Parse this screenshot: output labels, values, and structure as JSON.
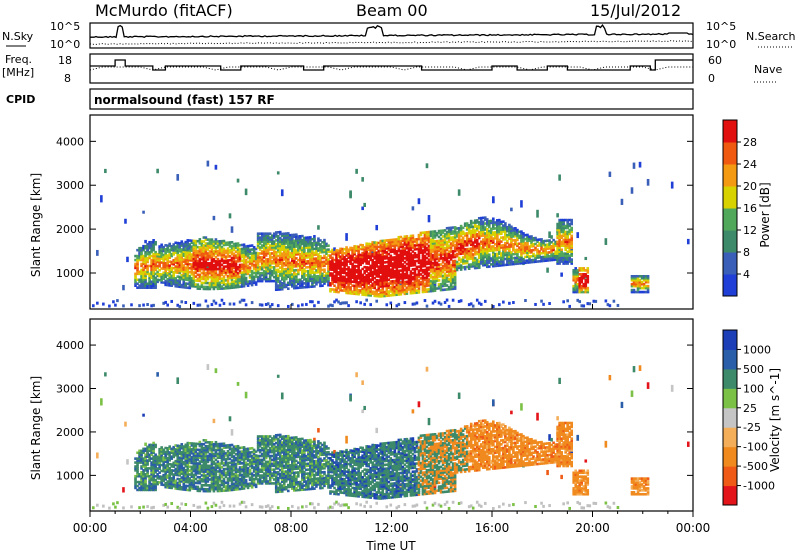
{
  "header": {
    "station": "McMurdo (fitACF)",
    "beam": "Beam 00",
    "date": "15/Jul/2012"
  },
  "status_panel": {
    "left_label_1": "N.Sky",
    "left_tick_top": "10^5",
    "left_tick_bottom": "10^0",
    "right_label_1": "N.Search",
    "right_tick_top": "10^5",
    "right_tick_bottom": "10^0"
  },
  "freq_panel": {
    "left_label_a": "Freq.",
    "left_label_b": "[MHz]",
    "left_tick_top": "18",
    "left_tick_bottom": "8",
    "right_label": "Nave",
    "right_tick_top": "60",
    "right_tick_bottom": "0"
  },
  "cpid_panel": {
    "label": "CPID",
    "value": "normalsound (fast) 157 RF"
  },
  "colors": {
    "power": [
      "#1f3fd6",
      "#3a5fb8",
      "#3d8a6a",
      "#52a85a",
      "#d8d200",
      "#f39a12",
      "#ef5a10",
      "#e20f0f"
    ],
    "velocity": [
      "#e4141b",
      "#ef5b16",
      "#f08a1f",
      "#f4ae5a",
      "#c5c5c5",
      "#7bc145",
      "#3d8a6a",
      "#2b5ea8",
      "#1c3fb8"
    ],
    "ground": "#c0c0c0"
  },
  "chart_data": [
    {
      "type": "heatmap",
      "panel": "power",
      "ylabel": "Slant Range [km]",
      "ylim": [
        180,
        4600
      ],
      "yticks": [
        "1000",
        "2000",
        "3000",
        "4000"
      ],
      "colorbar_label": "Power [dB]",
      "colorbar_ticks": [
        "4",
        "8",
        "12",
        "16",
        "20",
        "24",
        "28"
      ],
      "xlim": [
        0,
        24
      ],
      "grid": false
    },
    {
      "type": "heatmap",
      "panel": "velocity",
      "ylabel": "Slant Range [km]",
      "ylim": [
        180,
        4600
      ],
      "yticks": [
        "1000",
        "2000",
        "3000",
        "4000"
      ],
      "colorbar_label": "Velocity [m s^-1]",
      "colorbar_ticks": [
        "1000",
        "500",
        "100",
        "25",
        "-25",
        "-100",
        "-500",
        "-1000"
      ],
      "xlim": [
        0,
        24
      ],
      "xlabel": "Time UT",
      "xticks": [
        "00:00",
        "04:00",
        "08:00",
        "12:00",
        "16:00",
        "20:00",
        "00:00"
      ],
      "grid": false
    }
  ]
}
